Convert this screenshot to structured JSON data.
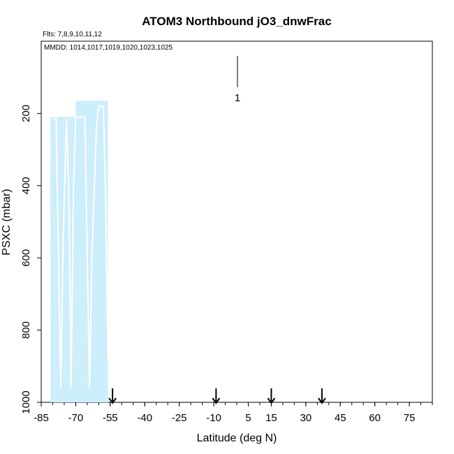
{
  "chart_data": {
    "type": "area",
    "title": "ATOM3 Northbound jO3_dnwFrac",
    "flights_note": "Flts: 7,8,9,10,11,12",
    "dates_note": "MMDD: 1014,1017,1019,1020,1023,1025",
    "xlabel": "Latitude (deg N)",
    "ylabel": "PSXC (mbar)",
    "xlim": [
      -85,
      85
    ],
    "ylim": [
      1000,
      0
    ],
    "x_tick_labels": [
      "-85",
      "-70",
      "-55",
      "-40",
      "-25",
      "-10",
      "5",
      "15",
      "30",
      "45",
      "60",
      "75"
    ],
    "y_tick_labels": [
      "200",
      "400",
      "600",
      "800",
      "1000"
    ],
    "shaded_region_color": "#cdeefb",
    "series_color": "#ffffff",
    "shaded_region": [
      {
        "x": -81,
        "y": 210
      },
      {
        "x": -70,
        "y": 210
      },
      {
        "x": -70,
        "y": 165
      },
      {
        "x": -56,
        "y": 165
      },
      {
        "x": -56,
        "y": 1000
      },
      {
        "x": -81,
        "y": 1000
      }
    ],
    "profile_line": [
      {
        "x": -80,
        "y": 215
      },
      {
        "x": -78.5,
        "y": 215
      },
      {
        "x": -77.5,
        "y": 600
      },
      {
        "x": -76.5,
        "y": 960
      },
      {
        "x": -75.5,
        "y": 560
      },
      {
        "x": -74,
        "y": 215
      },
      {
        "x": -73,
        "y": 420
      },
      {
        "x": -72,
        "y": 960
      },
      {
        "x": -71,
        "y": 420
      },
      {
        "x": -70,
        "y": 210
      },
      {
        "x": -66,
        "y": 210
      },
      {
        "x": -65,
        "y": 600
      },
      {
        "x": -64,
        "y": 960
      },
      {
        "x": -63,
        "y": 600
      },
      {
        "x": -61,
        "y": 240
      },
      {
        "x": -60,
        "y": 180
      },
      {
        "x": -58,
        "y": 180
      },
      {
        "x": -57,
        "y": 420
      },
      {
        "x": -56,
        "y": 880
      }
    ],
    "legend_marker": {
      "label": "1",
      "x": 0
    },
    "arrow_markers_x": [
      -54,
      -9,
      15,
      37
    ]
  }
}
